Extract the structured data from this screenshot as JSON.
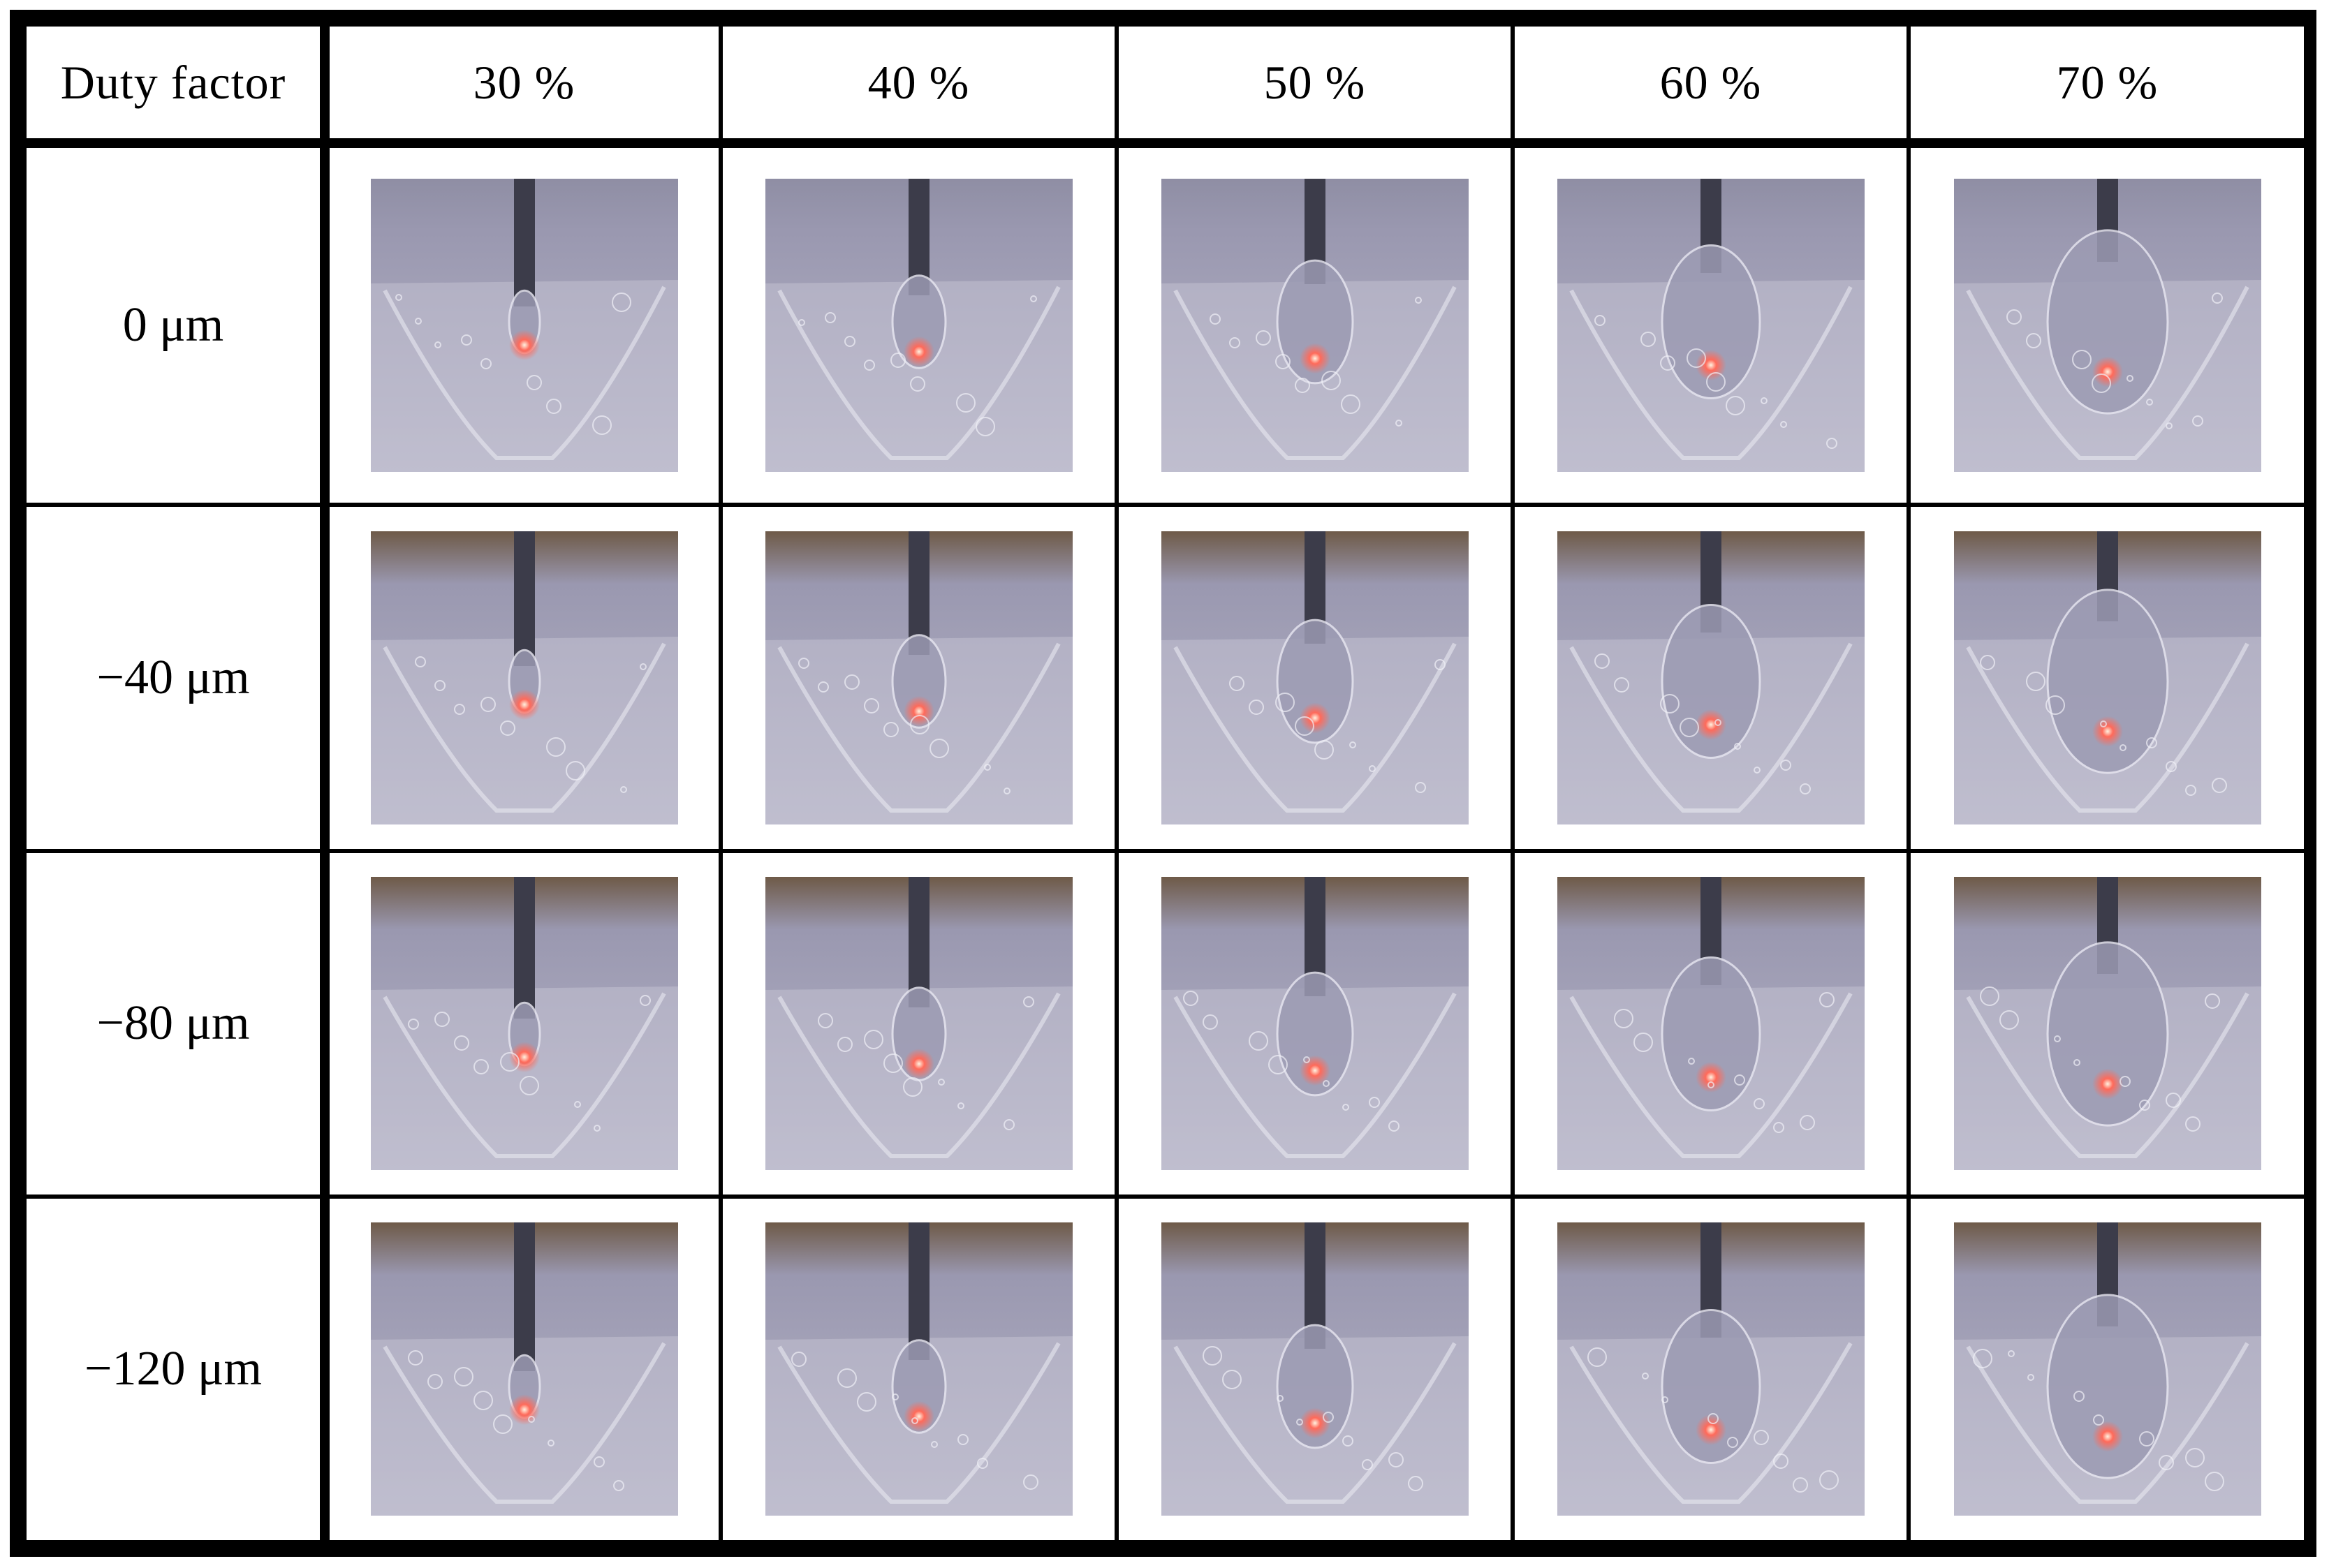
{
  "table": {
    "corner_label": "Duty factor",
    "columns": [
      "30 %",
      "40 %",
      "50 %",
      "60 %",
      "70 %"
    ],
    "rows": [
      {
        "label": "0 μm"
      },
      {
        "label": "−40 μm"
      },
      {
        "label": "−80 μm"
      },
      {
        "label": "−120 μm"
      }
    ]
  },
  "photo_style": {
    "background": "#9a98b0",
    "tool": "#3c3c4a",
    "spark": "#ff6a5a",
    "liquid": "#c9c7d8",
    "top_band": "#6e5a48"
  }
}
